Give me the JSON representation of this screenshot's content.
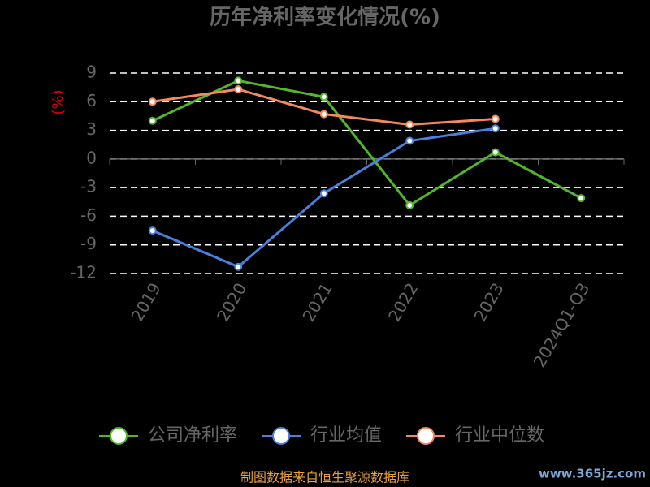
{
  "chart_data": {
    "type": "line",
    "title": "历年净利率变化情况(%)",
    "y_label": "(%)",
    "categories": [
      "2019",
      "2020",
      "2021",
      "2022",
      "2023",
      "2024Q1-Q3"
    ],
    "series": [
      {
        "name": "公司净利率",
        "color": "#52b62a",
        "values": [
          4.0,
          8.2,
          6.5,
          -4.85,
          0.7,
          -4.1
        ]
      },
      {
        "name": "行业均值",
        "color": "#4b7fdc",
        "values": [
          -7.5,
          -11.3,
          -3.6,
          1.9,
          3.2,
          null
        ]
      },
      {
        "name": "行业中位数",
        "color": "#f3895e",
        "values": [
          6.0,
          7.3,
          4.7,
          3.6,
          4.2,
          null
        ]
      }
    ],
    "ylim": [
      -12,
      9
    ],
    "yticks": [
      9,
      6,
      3,
      0,
      -3,
      -6,
      -9,
      -12
    ],
    "grid": true,
    "source": "制图数据来自恒生聚源数据库",
    "watermark": "www.365jz.com"
  }
}
